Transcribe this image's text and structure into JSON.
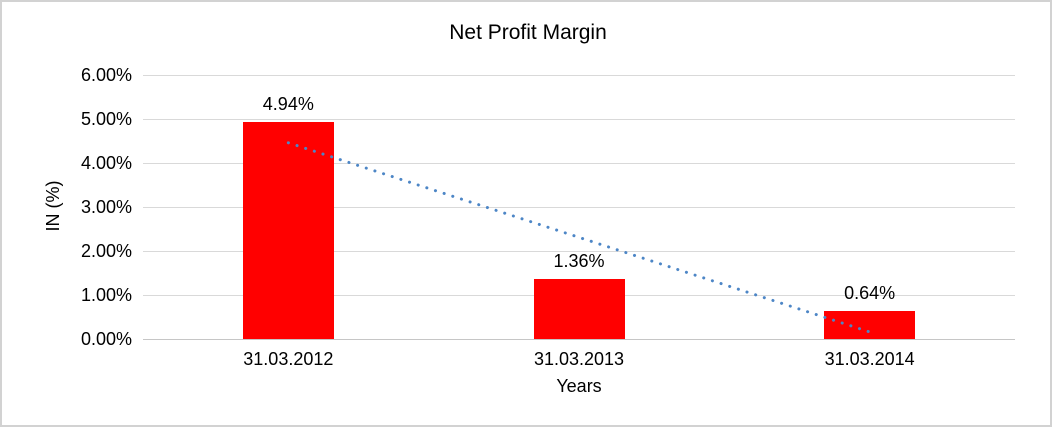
{
  "window": {
    "background": "#ffffff",
    "border_color": "#d2d2d2"
  },
  "chart_data": {
    "type": "bar",
    "title": "Net Profit Margin",
    "xlabel": "Years",
    "ylabel": "IN (%)",
    "categories": [
      "31.03.2012",
      "31.03.2013",
      "31.03.2014"
    ],
    "values": [
      4.94,
      1.36,
      0.64
    ],
    "data_labels": [
      "4.94%",
      "1.36%",
      "0.64%"
    ],
    "y_ticks": [
      {
        "value": 6,
        "label": "6.00%"
      },
      {
        "value": 5,
        "label": "5.00%"
      },
      {
        "value": 4,
        "label": "4.00%"
      },
      {
        "value": 3,
        "label": "3.00%"
      },
      {
        "value": 2,
        "label": "2.00%"
      },
      {
        "value": 1,
        "label": "1.00%"
      },
      {
        "value": 0,
        "label": "0.00%"
      }
    ],
    "ylim": [
      0,
      6
    ],
    "grid": true,
    "legend": false,
    "colors": {
      "bar": "#FF0000",
      "trendline": "#4D86C6",
      "gridline": "#d9d9d9",
      "axis_line": "#c6c6c6",
      "text": "#000000"
    },
    "trendline": {
      "type": "linear",
      "style": "dotted",
      "start_value": 4.46,
      "end_value": 0.16
    }
  }
}
